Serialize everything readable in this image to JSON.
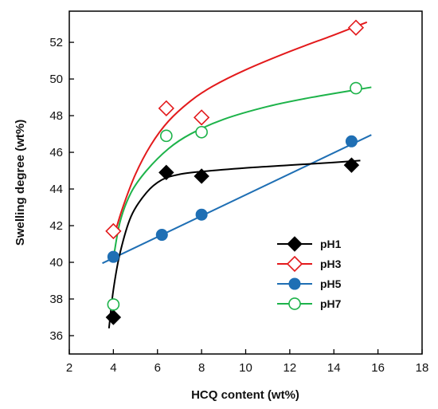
{
  "chart_data": {
    "type": "scatter",
    "xlabel": "HCQ content (wt%)",
    "ylabel": "Swelling degree (wt%)",
    "xlim": [
      2,
      18
    ],
    "ylim": [
      35,
      53.7
    ],
    "xticks": [
      2,
      4,
      6,
      8,
      10,
      12,
      14,
      16,
      18
    ],
    "yticks": [
      36,
      38,
      40,
      42,
      44,
      46,
      48,
      50,
      52
    ],
    "legend_position": "bottom-right",
    "grid": false,
    "series": [
      {
        "name": "pH1",
        "marker": "diamond-filled",
        "color": "#000000",
        "x": [
          4,
          6.4,
          8,
          14.8
        ],
        "y": [
          37.0,
          44.9,
          44.7,
          45.3
        ],
        "fit": [
          [
            3.8,
            36.4
          ],
          [
            4.0,
            38.5
          ],
          [
            4.3,
            40.5
          ],
          [
            4.8,
            42.5
          ],
          [
            5.5,
            43.8
          ],
          [
            6.2,
            44.5
          ],
          [
            7.0,
            44.8
          ],
          [
            8.0,
            44.95
          ],
          [
            10.0,
            45.15
          ],
          [
            12.0,
            45.3
          ],
          [
            14.0,
            45.45
          ],
          [
            15.2,
            45.55
          ]
        ]
      },
      {
        "name": "pH3",
        "marker": "diamond-open",
        "color": "#e31a1c",
        "x": [
          4,
          6.4,
          8,
          15
        ],
        "y": [
          41.7,
          48.4,
          47.9,
          52.8
        ],
        "fit": [
          [
            4.0,
            41.3
          ],
          [
            4.4,
            42.9
          ],
          [
            5.0,
            44.8
          ],
          [
            5.7,
            46.4
          ],
          [
            6.5,
            47.7
          ],
          [
            7.5,
            48.8
          ],
          [
            8.5,
            49.6
          ],
          [
            10.0,
            50.5
          ],
          [
            12.0,
            51.5
          ],
          [
            14.0,
            52.4
          ],
          [
            15.5,
            53.1
          ]
        ]
      },
      {
        "name": "pH5",
        "marker": "circle-filled",
        "color": "#1f6fb4",
        "x": [
          4,
          6.2,
          8,
          14.8
        ],
        "y": [
          40.3,
          41.5,
          42.6,
          46.6
        ],
        "fit": [
          [
            3.5,
            39.95
          ],
          [
            15.7,
            46.95
          ]
        ]
      },
      {
        "name": "pH7",
        "marker": "circle-open",
        "color": "#1db34a",
        "x": [
          4,
          6.4,
          8,
          15
        ],
        "y": [
          37.7,
          46.9,
          47.1,
          49.5
        ],
        "fit": [
          [
            4.0,
            40.2
          ],
          [
            4.3,
            42.2
          ],
          [
            4.8,
            43.8
          ],
          [
            5.5,
            45.0
          ],
          [
            6.5,
            46.2
          ],
          [
            7.5,
            47.0
          ],
          [
            9.0,
            47.8
          ],
          [
            11.0,
            48.5
          ],
          [
            13.0,
            49.0
          ],
          [
            15.7,
            49.55
          ]
        ]
      }
    ]
  }
}
